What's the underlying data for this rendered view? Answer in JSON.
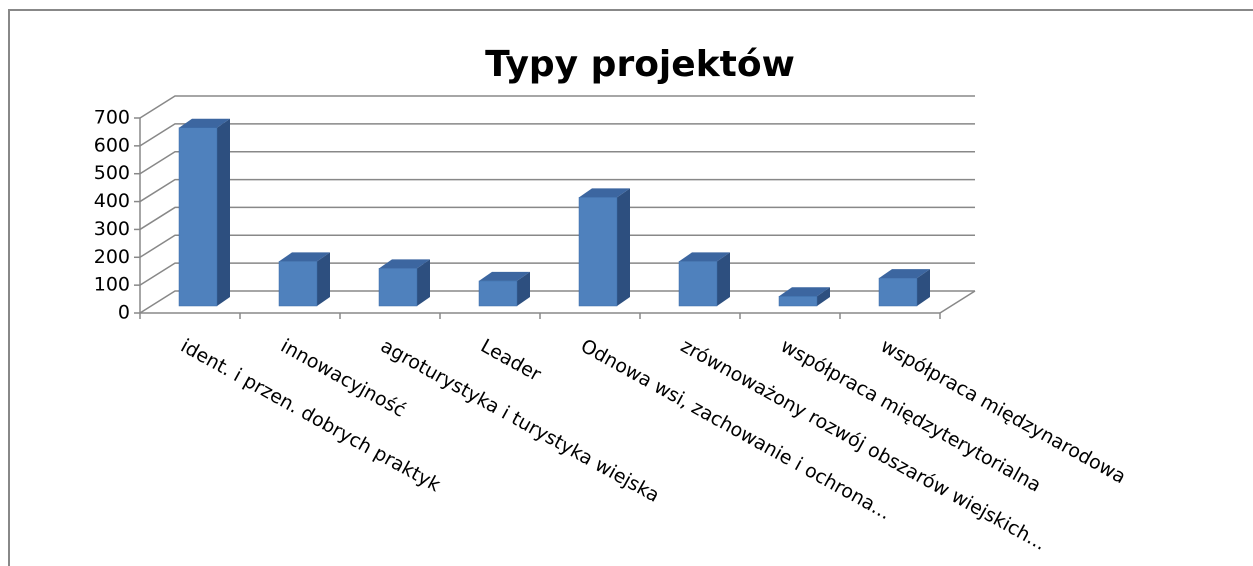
{
  "chart_data": {
    "type": "bar3d",
    "title": "Typy projektów",
    "categories": [
      "ident. i przen. dobrych praktyk",
      "innowacyjność",
      "agroturystyka i turystyka wiejska",
      "Leader",
      "Odnowa wsi, zachowanie i ochrona...",
      "zrównoważony rozwój obszarów wiejskich...",
      "współpraca międzyterytorialna",
      "współpraca międzynarodowa"
    ],
    "values": [
      640,
      160,
      135,
      90,
      390,
      160,
      35,
      100
    ],
    "color": "#4f81bd",
    "ylim": [
      0,
      700
    ],
    "yticks": [
      0,
      100,
      200,
      300,
      400,
      500,
      600,
      700
    ],
    "grid": true
  }
}
